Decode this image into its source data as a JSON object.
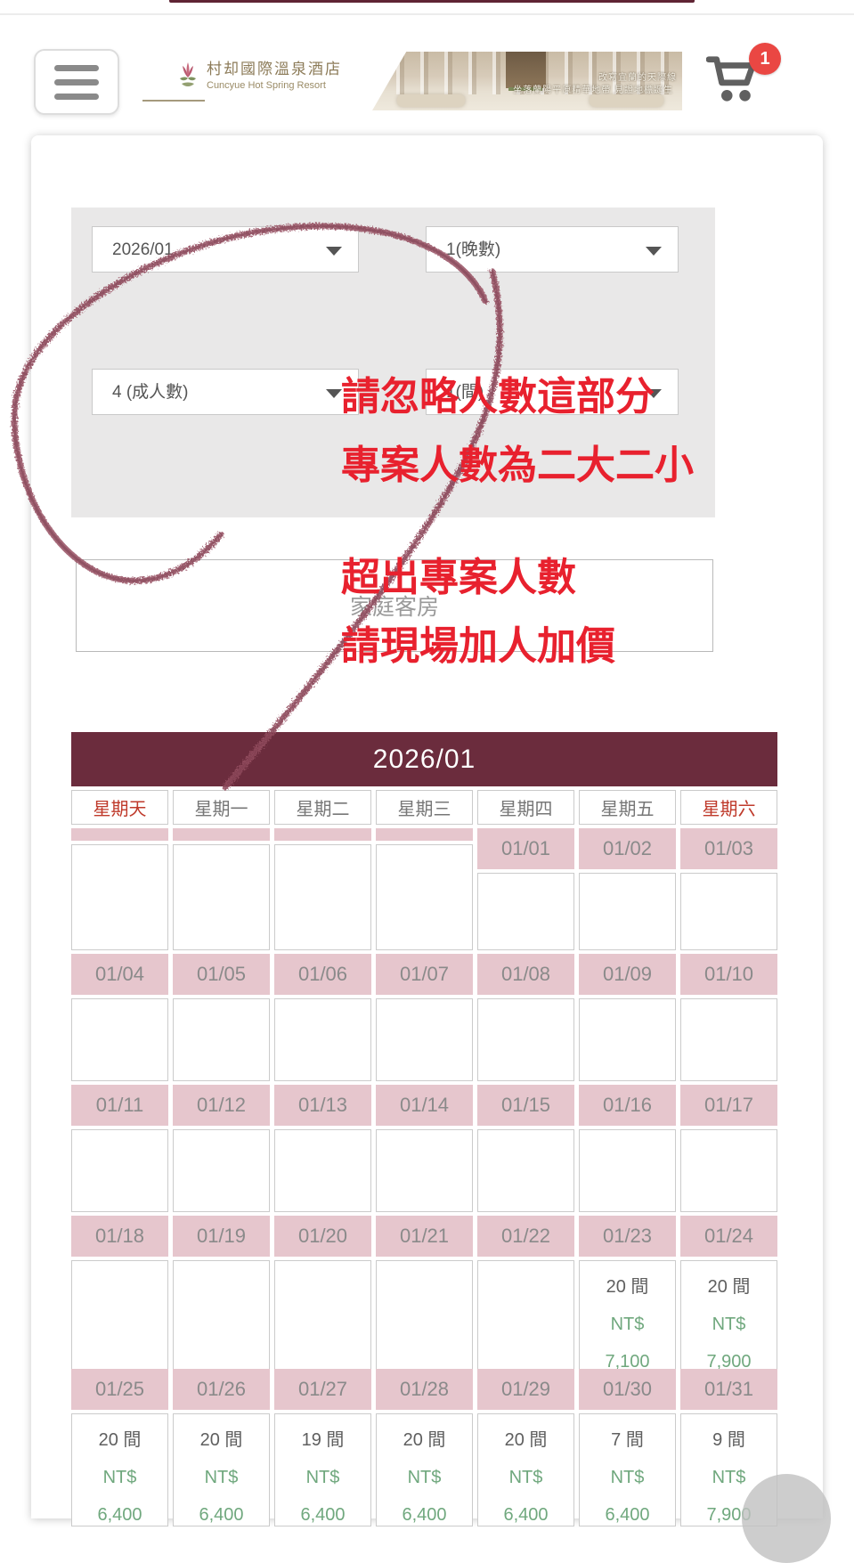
{
  "header": {
    "logo": {
      "title": "村却國際溫泉酒店",
      "subtitle": "Cuncyue Hot Spring Resort"
    },
    "banner": {
      "caption_line1": "改寫宜蘭的天際線",
      "caption_line2": "坐落蘭陽平原精華地帶 見證地標誕生"
    },
    "cart": {
      "badge_count": "1"
    }
  },
  "icons": {
    "menu": "hamburger-icon",
    "cart": "shopping-cart-icon",
    "logo": "flower-logo-icon",
    "select_caret": "caret-down-icon"
  },
  "colors": {
    "calendar_header_bg": "#6b2c3d",
    "date_band_pink": "#e6c6cd",
    "price_green": "#70a87e",
    "weekend_red": "#bf3a2b",
    "annotation_red": "#e8212e",
    "scribble": "#96506a",
    "badge_red": "#ea4743"
  },
  "booking_form": {
    "month_select": {
      "value": "2026/01"
    },
    "nights_select": {
      "value": "1(晚數)"
    },
    "adults_select": {
      "value": "4 (成人數)"
    },
    "rooms_select": {
      "value": "1(間)"
    },
    "room_type_select": {
      "value": "家庭客房"
    }
  },
  "annotation": {
    "lines": [
      "請忽略人數這部分",
      "專案人數為二大二小",
      "超出專案人數",
      "請現場加人加價"
    ]
  },
  "calendar": {
    "title": "2026/01",
    "weekdays": [
      {
        "label": "星期天",
        "weekend": true
      },
      {
        "label": "星期一",
        "weekend": false
      },
      {
        "label": "星期二",
        "weekend": false
      },
      {
        "label": "星期三",
        "weekend": false
      },
      {
        "label": "星期四",
        "weekend": false
      },
      {
        "label": "星期五",
        "weekend": false
      },
      {
        "label": "星期六",
        "weekend": true
      }
    ],
    "rows": [
      {
        "cells": [
          {
            "date": ""
          },
          {
            "date": ""
          },
          {
            "date": ""
          },
          {
            "date": ""
          },
          {
            "date": "01/01"
          },
          {
            "date": "01/02"
          },
          {
            "date": "01/03"
          }
        ]
      },
      {
        "cells": [
          {
            "date": "01/04"
          },
          {
            "date": "01/05"
          },
          {
            "date": "01/06"
          },
          {
            "date": "01/07"
          },
          {
            "date": "01/08"
          },
          {
            "date": "01/09"
          },
          {
            "date": "01/10"
          }
        ]
      },
      {
        "cells": [
          {
            "date": "01/11"
          },
          {
            "date": "01/12"
          },
          {
            "date": "01/13"
          },
          {
            "date": "01/14"
          },
          {
            "date": "01/15"
          },
          {
            "date": "01/16"
          },
          {
            "date": "01/17"
          }
        ]
      },
      {
        "cells": [
          {
            "date": "01/18"
          },
          {
            "date": "01/19"
          },
          {
            "date": "01/20"
          },
          {
            "date": "01/21"
          },
          {
            "date": "01/22"
          },
          {
            "date": "01/23",
            "rooms": "20 間",
            "currency": "NT$",
            "price": "7,100"
          },
          {
            "date": "01/24",
            "rooms": "20 間",
            "currency": "NT$",
            "price": "7,900"
          }
        ]
      },
      {
        "cells": [
          {
            "date": "01/25",
            "rooms": "20 間",
            "currency": "NT$",
            "price": "6,400"
          },
          {
            "date": "01/26",
            "rooms": "20 間",
            "currency": "NT$",
            "price": "6,400"
          },
          {
            "date": "01/27",
            "rooms": "19 間",
            "currency": "NT$",
            "price": "6,400"
          },
          {
            "date": "01/28",
            "rooms": "20 間",
            "currency": "NT$",
            "price": "6,400"
          },
          {
            "date": "01/29",
            "rooms": "20 間",
            "currency": "NT$",
            "price": "6,400"
          },
          {
            "date": "01/30",
            "rooms": "7 間",
            "currency": "NT$",
            "price": "6,400"
          },
          {
            "date": "01/31",
            "rooms": "9 間",
            "currency": "NT$",
            "price": "7,900"
          }
        ]
      }
    ]
  }
}
